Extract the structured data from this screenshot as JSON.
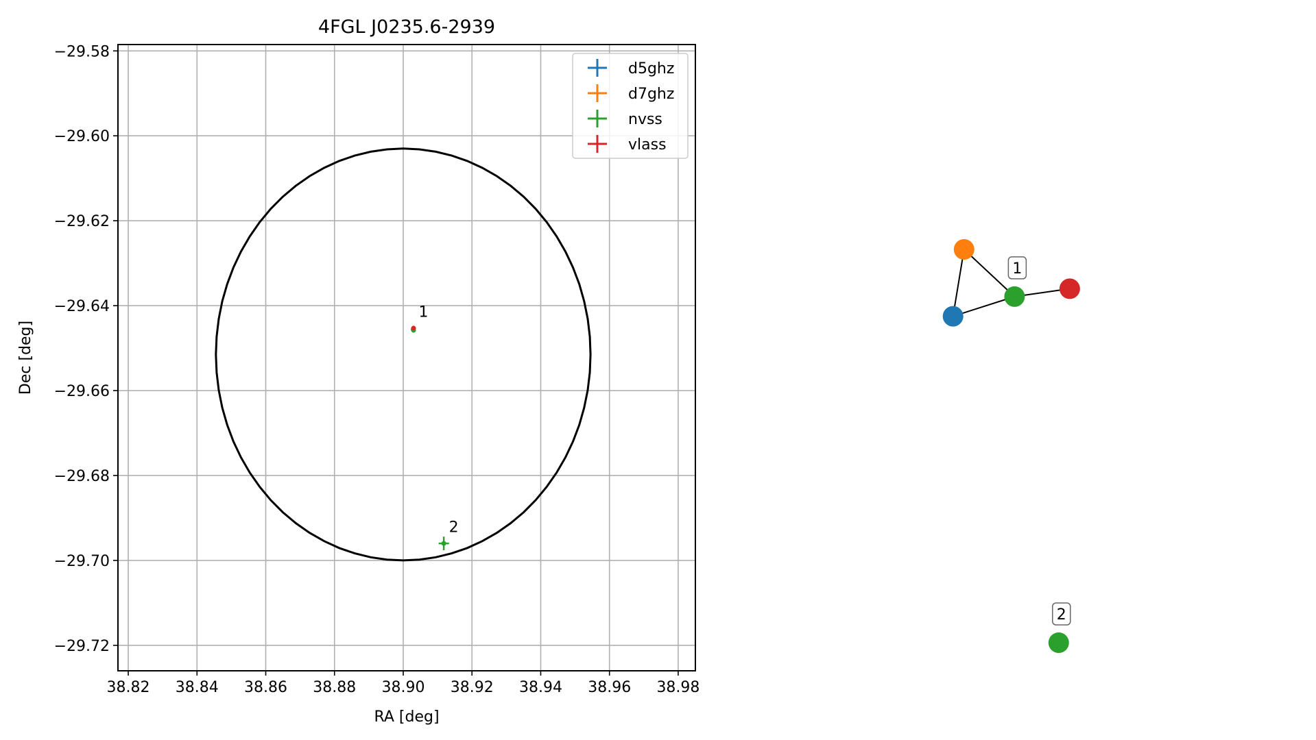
{
  "chart_data": [
    {
      "type": "scatter",
      "title": "4FGL J0235.6-2939",
      "xlabel": "RA [deg]",
      "ylabel": "Dec [deg]",
      "xlim": [
        38.817,
        38.985
      ],
      "ylim": [
        -29.726,
        -29.5785
      ],
      "xticks": [
        38.82,
        38.84,
        38.86,
        38.88,
        38.9,
        38.92,
        38.94,
        38.96,
        38.98
      ],
      "xtick_labels": [
        "38.82",
        "38.84",
        "38.86",
        "38.88",
        "38.90",
        "38.92",
        "38.94",
        "38.96",
        "38.98"
      ],
      "yticks": [
        -29.58,
        -29.6,
        -29.62,
        -29.64,
        -29.66,
        -29.68,
        -29.7,
        -29.72
      ],
      "ytick_labels": [
        "−29.58",
        "−29.60",
        "−29.62",
        "−29.64",
        "−29.66",
        "−29.68",
        "−29.70",
        "−29.72"
      ],
      "grid": true,
      "legend_position": "top-right",
      "ellipse": {
        "center": [
          38.9,
          -29.6515
        ],
        "ra_semi_axis": 0.0545,
        "dec_semi_axis": 0.0485,
        "color": "#000000"
      },
      "series": [
        {
          "name": "d5ghz",
          "color": "#1f77b4",
          "points": [
            {
              "x": 38.9029,
              "y": -29.6456,
              "xerr": 0.0001,
              "yerr": 0.0001
            }
          ]
        },
        {
          "name": "d7ghz",
          "color": "#ff7f0e",
          "points": [
            {
              "x": 38.903,
              "y": -29.6454,
              "xerr": 0.0001,
              "yerr": 0.0001
            }
          ]
        },
        {
          "name": "nvss",
          "color": "#2ca02c",
          "points": [
            {
              "x": 38.903,
              "y": -29.6458,
              "xerr": 0.0003,
              "yerr": 0.0003
            },
            {
              "x": 38.9118,
              "y": -29.696,
              "xerr": 0.0015,
              "yerr": 0.0016
            }
          ]
        },
        {
          "name": "vlass",
          "color": "#d62728",
          "points": [
            {
              "x": 38.903,
              "y": -29.6453,
              "xerr": 0.0001,
              "yerr": 0.0001
            }
          ]
        }
      ],
      "annotations": [
        {
          "text": "1",
          "x": 38.9037,
          "y": -29.6433
        },
        {
          "text": "2",
          "x": 38.9125,
          "y": -29.694
        }
      ]
    },
    {
      "type": "network",
      "nodes": [
        {
          "id": "d5ghz",
          "color": "#1f77b4",
          "x": 0.09,
          "y": 0.17
        },
        {
          "id": "d7ghz",
          "color": "#ff7f0e",
          "x": 0.16,
          "y": 0.0
        },
        {
          "id": "nvss-1",
          "color": "#2ca02c",
          "x": 0.48,
          "y": 0.12
        },
        {
          "id": "vlass",
          "color": "#d62728",
          "x": 0.83,
          "y": 0.1
        },
        {
          "id": "nvss-2",
          "color": "#2ca02c",
          "x": 0.76,
          "y": 1.0
        }
      ],
      "edges": [
        [
          "d5ghz",
          "d7ghz"
        ],
        [
          "d7ghz",
          "nvss-1"
        ],
        [
          "d5ghz",
          "nvss-1"
        ],
        [
          "nvss-1",
          "vlass"
        ]
      ],
      "labels": [
        {
          "text": "1",
          "node": "nvss-1"
        },
        {
          "text": "2",
          "node": "nvss-2"
        }
      ]
    }
  ]
}
